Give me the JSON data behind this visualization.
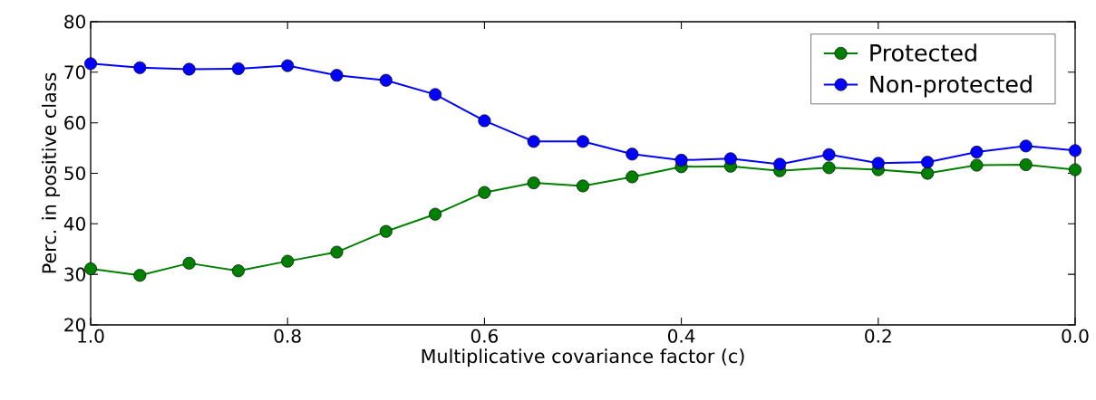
{
  "chart_data": {
    "type": "line",
    "xlabel": "Multiplicative covariance factor (c)",
    "ylabel": "Perc. in positive class",
    "x": [
      1.0,
      0.95,
      0.9,
      0.85,
      0.8,
      0.75,
      0.7,
      0.65,
      0.6,
      0.55,
      0.5,
      0.45,
      0.4,
      0.35,
      0.3,
      0.25,
      0.2,
      0.15,
      0.1,
      0.05,
      0.0
    ],
    "series": [
      {
        "name": "Protected",
        "color": "#008000",
        "values": [
          31.1,
          29.8,
          32.2,
          30.7,
          32.6,
          34.4,
          38.5,
          41.9,
          46.2,
          48.1,
          47.5,
          49.3,
          51.3,
          51.4,
          50.5,
          51.1,
          50.7,
          50.0,
          51.6,
          51.7,
          50.7
        ]
      },
      {
        "name": "Non-protected",
        "color": "#0000ff",
        "values": [
          71.7,
          70.9,
          70.6,
          70.7,
          71.3,
          69.4,
          68.4,
          65.6,
          60.4,
          56.3,
          56.3,
          53.8,
          52.6,
          52.9,
          51.8,
          53.7,
          52.0,
          52.2,
          54.2,
          55.4,
          54.5
        ]
      }
    ],
    "xlim": [
      1.0,
      0.0
    ],
    "ylim": [
      20,
      80
    ],
    "xticks": [
      {
        "value": 1.0,
        "label": "1.0"
      },
      {
        "value": 0.8,
        "label": "0.8"
      },
      {
        "value": 0.6,
        "label": "0.6"
      },
      {
        "value": 0.4,
        "label": "0.4"
      },
      {
        "value": 0.2,
        "label": "0.2"
      },
      {
        "value": 0.0,
        "label": "0.0"
      }
    ],
    "yticks": [
      20,
      30,
      40,
      50,
      60,
      70,
      80
    ],
    "grid": false,
    "legend": "top right",
    "marker": "circle",
    "line_style": "solid"
  }
}
